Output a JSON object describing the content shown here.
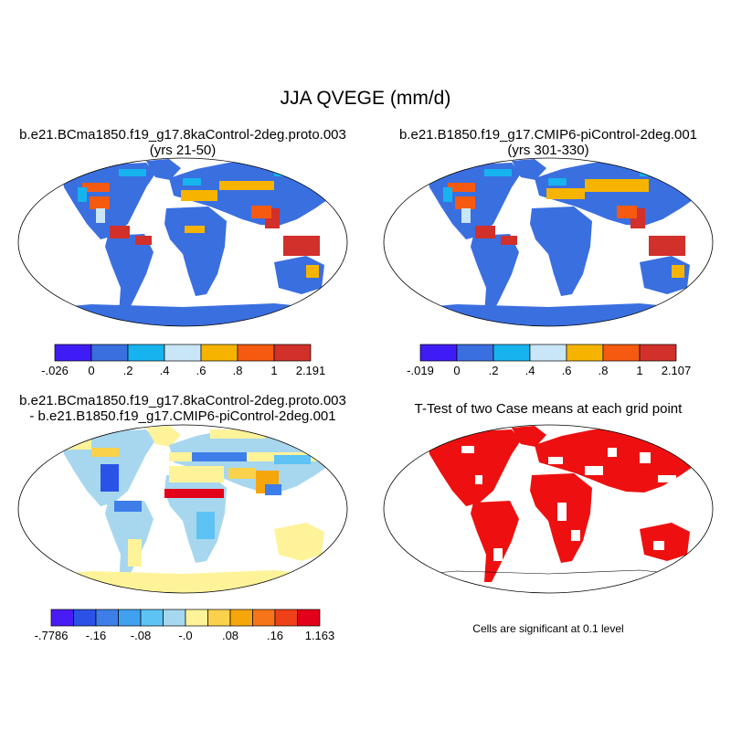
{
  "main_title": "JJA QVEGE (mm/d)",
  "chart_data": [
    {
      "type": "heatmap",
      "panel": "top-left",
      "title_line1": "b.e21.BCma1850.f19_g17.8kaControl-2deg.proto.003",
      "title_line2": "(yrs 21-50)",
      "projection": "Robinson (global map)",
      "colorbar": {
        "labels": [
          "-.026",
          "0",
          ".2",
          ".4",
          ".6",
          ".8",
          "1",
          "2.191"
        ],
        "colors": [
          "#3f1cf5",
          "#3a6fe0",
          "#16b3ee",
          "#c8e6f8",
          "#f6b400",
          "#f55a10",
          "#d2302a"
        ]
      }
    },
    {
      "type": "heatmap",
      "panel": "top-right",
      "title_line1": "b.e21.B1850.f19_g17.CMIP6-piControl-2deg.001",
      "title_line2": "(yrs 301-330)",
      "projection": "Robinson (global map)",
      "colorbar": {
        "labels": [
          "-.019",
          "0",
          ".2",
          ".4",
          ".6",
          ".8",
          "1",
          "2.107"
        ],
        "colors": [
          "#3f1cf5",
          "#3a6fe0",
          "#16b3ee",
          "#c8e6f8",
          "#f6b400",
          "#f55a10",
          "#d2302a"
        ]
      }
    },
    {
      "type": "heatmap",
      "panel": "bottom-left",
      "title_line1": "b.e21.BCma1850.f19_g17.8kaControl-2deg.proto.003",
      "title_line2": "- b.e21.B1850.f19_g17.CMIP6-piControl-2deg.001",
      "projection": "Robinson (global map)",
      "colorbar": {
        "labels": [
          "-.7786",
          "-.16",
          "-.08",
          "-.0",
          ".08",
          ".16",
          "1.163"
        ],
        "label_boundary_index": [
          0,
          2,
          4,
          6,
          8,
          10,
          12
        ],
        "colors": [
          "#4a1cf5",
          "#2b52e6",
          "#3d7ee8",
          "#3fa1ef",
          "#5cc3f4",
          "#a7d7ee",
          "#fff39a",
          "#f9d14a",
          "#f6a60a",
          "#f57518",
          "#f0401a",
          "#e3001a"
        ]
      }
    },
    {
      "type": "heatmap",
      "panel": "bottom-right",
      "title_line1": "T-Test of two Case means at each grid point",
      "note": "Cells are significant at 0.1 level",
      "projection": "Robinson (global map)",
      "colors": {
        "significant": "#ee1010",
        "not_significant": "#ffffff"
      }
    }
  ]
}
